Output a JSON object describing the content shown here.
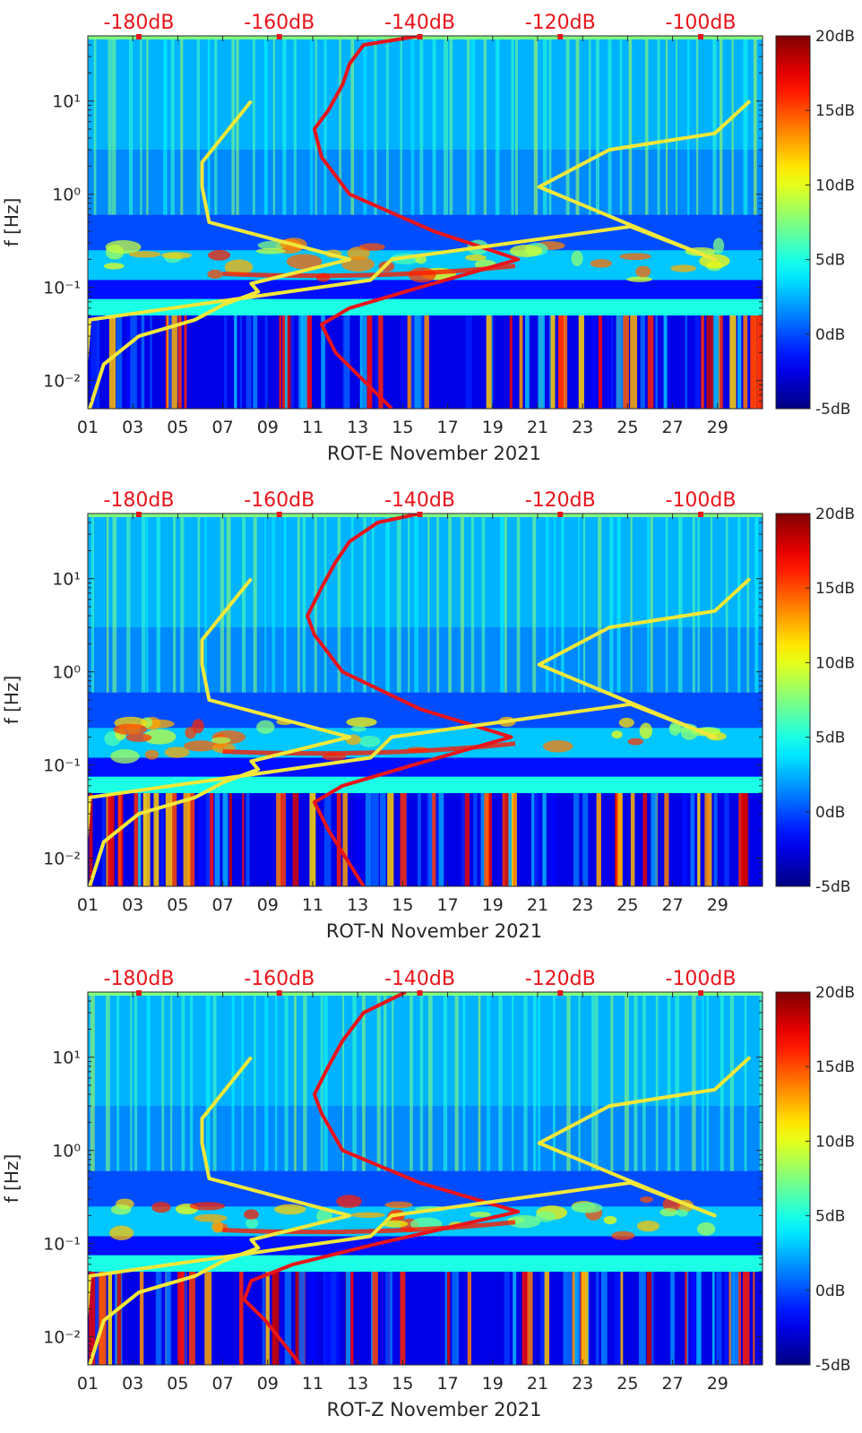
{
  "chart_data": [
    {
      "type": "heatmap",
      "title": "",
      "xlabel": "ROT-E November 2021",
      "ylabel": "f [Hz]",
      "x_tick_labels": [
        "01",
        "03",
        "05",
        "07",
        "09",
        "11",
        "13",
        "15",
        "17",
        "19",
        "21",
        "23",
        "25",
        "27",
        "29"
      ],
      "y_tick_labels": [
        "10⁻²",
        "10⁻¹",
        "10⁰",
        "10¹"
      ],
      "y_tick_values": [
        0.01,
        0.1,
        1,
        10
      ],
      "xlim": [
        1,
        31
      ],
      "ylim": [
        0.005,
        50
      ],
      "yscale": "log",
      "secondary_x_tick_labels": [
        "-180dB",
        "-160dB",
        "-140dB",
        "-120dB",
        "-100dB"
      ],
      "secondary_x_tick_values": [
        -180,
        -160,
        -140,
        -120,
        -100
      ],
      "colorbar": {
        "tick_labels": [
          "20dB",
          "15dB",
          "10dB",
          "5dB",
          "0dB",
          "-5dB"
        ],
        "range": [
          -5,
          20
        ],
        "colormap": "jet"
      },
      "series": [
        {
          "name": "red PSD curve (dB)",
          "color": "#e8141b",
          "x_db": [
            -144,
            -152,
            -154,
            -150,
            -140,
            -126,
            -138,
            -150,
            -154,
            -155,
            -153,
            -151,
            -150,
            -148,
            -140
          ],
          "f_hz": [
            0.005,
            0.02,
            0.04,
            0.06,
            0.1,
            0.2,
            0.4,
            1.0,
            2.5,
            5.0,
            8.0,
            15,
            25,
            40,
            50
          ]
        },
        {
          "name": "yellow noise model (dB)",
          "color": "#f2e83a",
          "x_db": [
            -187,
            -185,
            -180,
            -172,
            -168,
            -163,
            -164,
            -150,
            -170,
            -171,
            -171,
            -164,
            -188,
            -187,
            -147,
            -144,
            -110,
            -98,
            -106,
            -123,
            -113,
            -98,
            -93
          ],
          "f_hz": [
            0.005,
            0.015,
            0.03,
            0.045,
            0.065,
            0.09,
            0.11,
            0.2,
            0.5,
            1.2,
            2.2,
            10,
            0.005,
            0.045,
            0.12,
            0.2,
            0.45,
            0.2,
            0.35,
            1.2,
            3.0,
            4.5,
            10
          ]
        }
      ]
    },
    {
      "type": "heatmap",
      "title": "",
      "xlabel": "ROT-N November 2021",
      "ylabel": "f [Hz]",
      "x_tick_labels": [
        "01",
        "03",
        "05",
        "07",
        "09",
        "11",
        "13",
        "15",
        "17",
        "19",
        "21",
        "23",
        "25",
        "27",
        "29"
      ],
      "y_tick_labels": [
        "10⁻²",
        "10⁻¹",
        "10⁰",
        "10¹"
      ],
      "y_tick_values": [
        0.01,
        0.1,
        1,
        10
      ],
      "xlim": [
        1,
        31
      ],
      "ylim": [
        0.005,
        50
      ],
      "yscale": "log",
      "secondary_x_tick_labels": [
        "-180dB",
        "-160dB",
        "-140dB",
        "-120dB",
        "-100dB"
      ],
      "secondary_x_tick_values": [
        -180,
        -160,
        -140,
        -120,
        -100
      ],
      "colorbar": {
        "tick_labels": [
          "20dB",
          "15dB",
          "10dB",
          "5dB",
          "0dB",
          "-5dB"
        ],
        "range": [
          -5,
          20
        ],
        "colormap": "jet"
      },
      "series": [
        {
          "name": "red PSD curve (dB)",
          "color": "#e8141b",
          "x_db": [
            -148,
            -153,
            -155,
            -151,
            -141,
            -127,
            -140,
            -151,
            -155,
            -156,
            -154,
            -152,
            -150,
            -146,
            -140
          ],
          "f_hz": [
            0.005,
            0.02,
            0.04,
            0.06,
            0.1,
            0.2,
            0.4,
            1.0,
            2.5,
            4.0,
            8.0,
            15,
            25,
            40,
            50
          ]
        },
        {
          "name": "yellow noise model (dB)",
          "color": "#f2e83a",
          "x_db": [
            -187,
            -185,
            -180,
            -172,
            -168,
            -163,
            -164,
            -150,
            -170,
            -171,
            -171,
            -164,
            -188,
            -187,
            -147,
            -144,
            -110,
            -98,
            -106,
            -123,
            -113,
            -98,
            -93
          ],
          "f_hz": [
            0.005,
            0.015,
            0.03,
            0.045,
            0.065,
            0.09,
            0.11,
            0.2,
            0.5,
            1.2,
            2.2,
            10,
            0.005,
            0.045,
            0.12,
            0.2,
            0.45,
            0.2,
            0.35,
            1.2,
            3.0,
            4.5,
            10
          ]
        }
      ]
    },
    {
      "type": "heatmap",
      "title": "",
      "xlabel": "ROT-Z November 2021",
      "ylabel": "f [Hz]",
      "x_tick_labels": [
        "01",
        "03",
        "05",
        "07",
        "09",
        "11",
        "13",
        "15",
        "17",
        "19",
        "21",
        "23",
        "25",
        "27",
        "29"
      ],
      "y_tick_labels": [
        "10⁻²",
        "10⁻¹",
        "10⁰",
        "10¹"
      ],
      "y_tick_values": [
        0.01,
        0.1,
        1,
        10
      ],
      "xlim": [
        1,
        31
      ],
      "ylim": [
        0.005,
        50
      ],
      "yscale": "log",
      "secondary_x_tick_labels": [
        "-180dB",
        "-160dB",
        "-140dB",
        "-120dB",
        "-100dB"
      ],
      "secondary_x_tick_values": [
        -180,
        -160,
        -140,
        -120,
        -100
      ],
      "colorbar": {
        "tick_labels": [
          "20dB",
          "15dB",
          "10dB",
          "5dB",
          "0dB",
          "-5dB"
        ],
        "range": [
          -5,
          20
        ],
        "colormap": "jet"
      },
      "series": [
        {
          "name": "red PSD curve (dB)",
          "color": "#e8141b",
          "x_db": [
            -157,
            -162,
            -165,
            -164,
            -158,
            -146,
            -126,
            -140,
            -151,
            -154,
            -155,
            -153,
            -151,
            -148,
            -142
          ],
          "f_hz": [
            0.005,
            0.015,
            0.025,
            0.04,
            0.06,
            0.1,
            0.22,
            0.45,
            1.0,
            2.5,
            4.0,
            8.0,
            15,
            30,
            50
          ]
        },
        {
          "name": "yellow noise model (dB)",
          "color": "#f2e83a",
          "x_db": [
            -187,
            -185,
            -180,
            -172,
            -168,
            -163,
            -164,
            -150,
            -170,
            -171,
            -171,
            -164,
            -188,
            -187,
            -147,
            -144,
            -110,
            -98,
            -106,
            -123,
            -113,
            -98,
            -93
          ],
          "f_hz": [
            0.005,
            0.015,
            0.03,
            0.045,
            0.065,
            0.09,
            0.11,
            0.2,
            0.5,
            1.2,
            2.2,
            10,
            0.005,
            0.045,
            0.12,
            0.2,
            0.45,
            0.2,
            0.35,
            1.2,
            3.0,
            4.5,
            10
          ]
        }
      ]
    }
  ]
}
